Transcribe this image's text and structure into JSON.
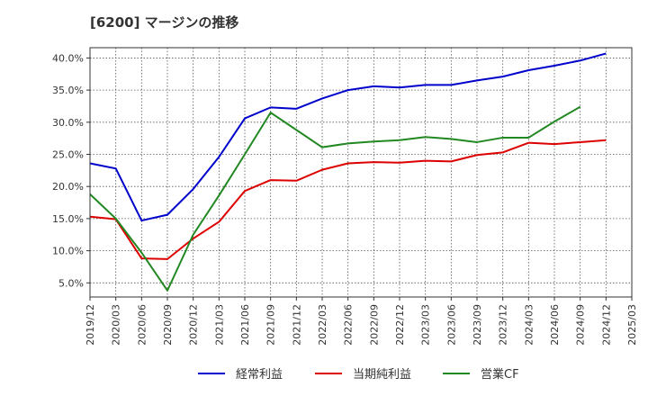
{
  "chart_data": {
    "type": "line",
    "title": "[6200]  マージンの推移",
    "xlabel": "",
    "ylabel": "",
    "ylim": [
      2.8,
      41.6
    ],
    "grid": true,
    "legend_position": "bottom",
    "x_ticks": [
      "2019/12",
      "2020/03",
      "2020/06",
      "2020/09",
      "2020/12",
      "2021/03",
      "2021/06",
      "2021/09",
      "2021/12",
      "2022/03",
      "2022/06",
      "2022/09",
      "2022/12",
      "2023/03",
      "2023/06",
      "2023/09",
      "2023/12",
      "2024/03",
      "2024/06",
      "2024/09",
      "2024/12",
      "2025/03"
    ],
    "y_ticks": [
      {
        "value": 5,
        "label": "5.0%"
      },
      {
        "value": 10,
        "label": "10.0%"
      },
      {
        "value": 15,
        "label": "15.0%"
      },
      {
        "value": 20,
        "label": "20.0%"
      },
      {
        "value": 25,
        "label": "25.0%"
      },
      {
        "value": 30,
        "label": "30.0%"
      },
      {
        "value": 35,
        "label": "35.0%"
      },
      {
        "value": 40,
        "label": "40.0%"
      }
    ],
    "series": [
      {
        "name": "経常利益",
        "color": "#0000cc",
        "x": [
          "2019/12",
          "2020/03",
          "2020/06",
          "2020/09",
          "2020/12",
          "2021/03",
          "2021/06",
          "2021/09",
          "2021/12",
          "2022/03",
          "2022/06",
          "2022/09",
          "2022/12",
          "2023/03",
          "2023/06",
          "2023/09",
          "2023/12",
          "2024/03",
          "2024/06",
          "2024/09",
          "2024/12"
        ],
        "values": [
          23.6,
          22.8,
          14.7,
          15.6,
          19.6,
          24.6,
          30.6,
          32.3,
          32.1,
          33.7,
          35.0,
          35.6,
          35.4,
          35.8,
          35.8,
          36.5,
          37.1,
          38.1,
          38.8,
          39.6,
          40.7
        ]
      },
      {
        "name": "当期純利益",
        "color": "#dd0000",
        "x": [
          "2019/12",
          "2020/03",
          "2020/06",
          "2020/09",
          "2020/12",
          "2021/03",
          "2021/06",
          "2021/09",
          "2021/12",
          "2022/03",
          "2022/06",
          "2022/09",
          "2022/12",
          "2023/03",
          "2023/06",
          "2023/09",
          "2023/12",
          "2024/03",
          "2024/06",
          "2024/09",
          "2024/12"
        ],
        "values": [
          15.3,
          14.9,
          8.8,
          8.7,
          11.9,
          14.5,
          19.3,
          21.0,
          20.9,
          22.6,
          23.6,
          23.8,
          23.7,
          24.0,
          23.9,
          24.9,
          25.3,
          26.8,
          26.6,
          26.9,
          27.2
        ]
      },
      {
        "name": "営業CF",
        "color": "#228822",
        "x": [
          "2019/12",
          "2020/03",
          "2020/06",
          "2020/09",
          "2020/12",
          "2021/03",
          "2021/06",
          "2021/09",
          "2021/12",
          "2022/03",
          "2022/06",
          "2022/09",
          "2022/12",
          "2023/03",
          "2023/06",
          "2023/09",
          "2023/12",
          "2024/03",
          "2024/06",
          "2024/09"
        ],
        "values": [
          18.8,
          15.0,
          9.7,
          3.8,
          12.5,
          18.6,
          25.0,
          31.5,
          28.8,
          26.1,
          26.7,
          27.0,
          27.2,
          27.7,
          27.4,
          26.9,
          27.6,
          27.6,
          30.1,
          32.4
        ]
      }
    ]
  }
}
